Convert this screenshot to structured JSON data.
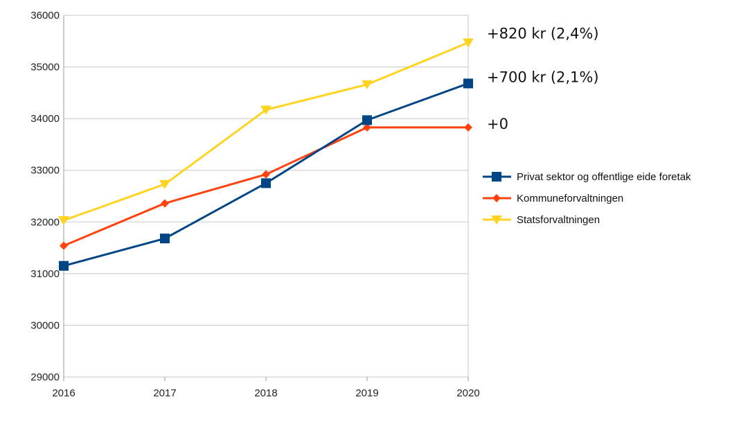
{
  "chart_data": {
    "type": "line",
    "categories": [
      "2016",
      "2017",
      "2018",
      "2019",
      "2020"
    ],
    "y_ticks": [
      "29000",
      "30000",
      "31000",
      "32000",
      "33000",
      "34000",
      "35000",
      "36000"
    ],
    "ylim": [
      29000,
      36000
    ],
    "grid": true,
    "legend_position": "right",
    "series": [
      {
        "name": "Privat sektor og offentlige eide foretak",
        "color": "#004586",
        "marker": "square",
        "values": [
          31150,
          31680,
          32750,
          33970,
          34680
        ]
      },
      {
        "name": "Kommuneforvaltningen",
        "color": "#ff420e",
        "marker": "diamond",
        "values": [
          31540,
          32360,
          32920,
          33830,
          33830
        ]
      },
      {
        "name": "Statsforvaltningen",
        "color": "#ffd320",
        "marker": "triangle-down",
        "values": [
          32030,
          32730,
          34170,
          34660,
          35470
        ]
      }
    ],
    "annotations": [
      {
        "text": "+820 kr (2,4%)",
        "series": "Statsforvaltningen"
      },
      {
        "text": "+700 kr (2,1%)",
        "series": "Privat sektor og offentlige eide foretak"
      },
      {
        "text": "+0",
        "series": "Kommuneforvaltningen"
      }
    ]
  }
}
